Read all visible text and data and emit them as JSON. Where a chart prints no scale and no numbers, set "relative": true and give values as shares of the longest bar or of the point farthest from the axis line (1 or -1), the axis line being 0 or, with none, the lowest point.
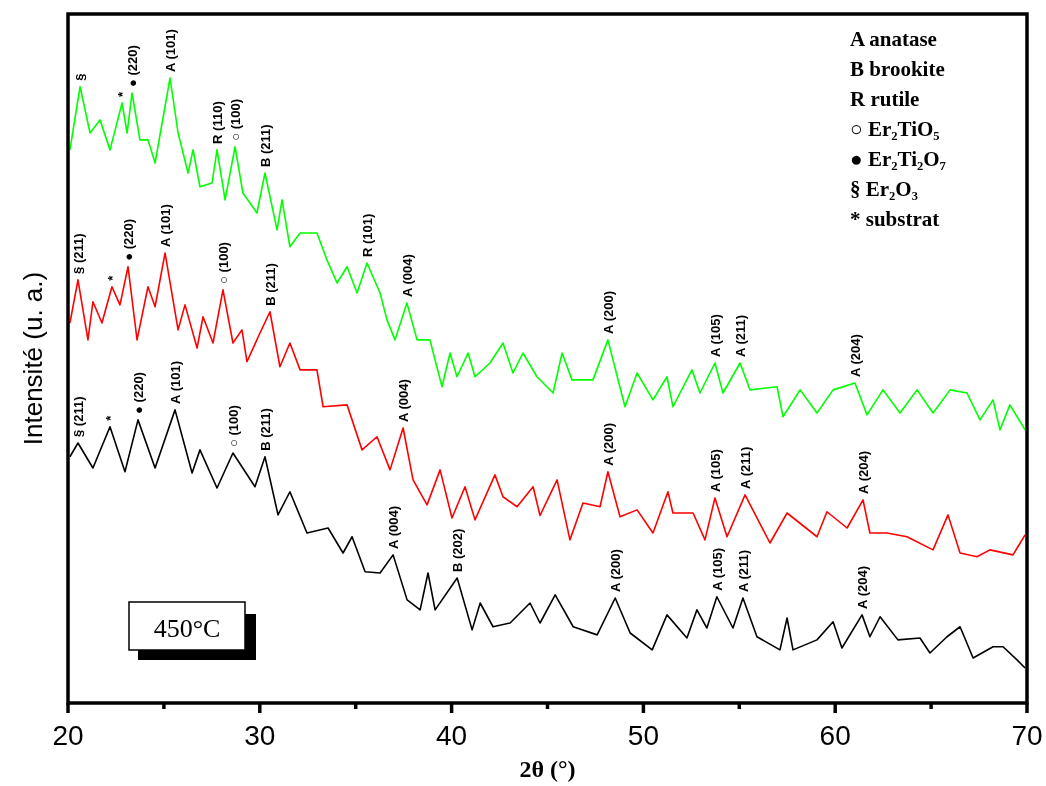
{
  "chart_data": {
    "type": "line",
    "title": "450°C",
    "xlabel": "2θ (°)",
    "ylabel": "Intensité (u. a.)",
    "relative": true,
    "marker": "none",
    "line_style": "solid",
    "grid": false,
    "tick_labels": "x",
    "xlim": [
      20,
      70
    ],
    "xticks": [
      20,
      {
        "value": 25,
        "label": null
      },
      30,
      {
        "value": 35,
        "label": null
      },
      40,
      {
        "value": 45,
        "label": null
      },
      50,
      {
        "value": 55,
        "label": null
      },
      60,
      {
        "value": 65,
        "label": null
      },
      70
    ],
    "series": [
      {
        "color": "#00ff00",
        "x": [
          20.1,
          20.63,
          21.15,
          21.67,
          22.19,
          22.82,
          23.08,
          23.34,
          23.75,
          24.17,
          24.54,
          25.32,
          25.74,
          26.26,
          26.52,
          26.88,
          27.51,
          27.77,
          28.19,
          28.71,
          29.12,
          29.85,
          30.27,
          30.9,
          31.16,
          31.57,
          32.1,
          32.98,
          33.5,
          34.03,
          34.55,
          35.07,
          35.59,
          36.27,
          36.63,
          37.05,
          37.67,
          38.2,
          38.87,
          39.5,
          39.92,
          40.28,
          40.86,
          41.22,
          42.0,
          42.68,
          43.2,
          43.72,
          44.45,
          45.29,
          45.76,
          46.28,
          47.37,
          48.15,
          49.04,
          49.67,
          50.5,
          51.23,
          51.54,
          52.53,
          52.95,
          53.73,
          54.15,
          55.04,
          55.56,
          56.97,
          57.28,
          58.17,
          59.05,
          59.89,
          61.03,
          61.66,
          62.49,
          63.38,
          64.27,
          65.1,
          65.99,
          66.87,
          67.55,
          68.23,
          68.59,
          69.11,
          69.9
        ],
        "values": [
          0.885,
          0.986,
          0.912,
          0.933,
          0.885,
          0.96,
          0.912,
          0.976,
          0.901,
          0.901,
          0.864,
          1,
          0.912,
          0.848,
          0.885,
          0.826,
          0.832,
          0.885,
          0.805,
          0.89,
          0.816,
          0.784,
          0.848,
          0.757,
          0.805,
          0.73,
          0.752,
          0.752,
          0.709,
          0.672,
          0.698,
          0.656,
          0.704,
          0.656,
          0.613,
          0.581,
          0.64,
          0.581,
          0.581,
          0.506,
          0.56,
          0.522,
          0.56,
          0.522,
          0.544,
          0.576,
          0.528,
          0.56,
          0.522,
          0.496,
          0.56,
          0.517,
          0.517,
          0.581,
          0.474,
          0.528,
          0.485,
          0.522,
          0.474,
          0.533,
          0.496,
          0.544,
          0.496,
          0.544,
          0.501,
          0.506,
          0.458,
          0.501,
          0.464,
          0.501,
          0.512,
          0.461,
          0.501,
          0.464,
          0.501,
          0.464,
          0.501,
          0.496,
          0.453,
          0.485,
          0.437,
          0.477,
          0.437
        ]
      },
      {
        "color": "#ff0000",
        "x": [
          20.1,
          20.52,
          21.04,
          21.3,
          21.77,
          22.29,
          22.71,
          23.13,
          23.6,
          24.17,
          24.54,
          25.06,
          25.74,
          26.1,
          26.73,
          27.04,
          27.56,
          28.08,
          28.6,
          29.07,
          29.33,
          30.01,
          30.53,
          31.05,
          31.57,
          32.1,
          32.98,
          33.3,
          34.55,
          35.33,
          36.11,
          36.79,
          37.47,
          37.99,
          38.72,
          39.4,
          40.02,
          40.7,
          41.22,
          42.26,
          42.68,
          43.41,
          44.25,
          44.61,
          45.5,
          46.17,
          46.85,
          47.74,
          48.15,
          48.78,
          49.67,
          50.5,
          51.28,
          51.54,
          52.59,
          53.21,
          53.73,
          54.36,
          55.3,
          56.6,
          57.49,
          59.05,
          59.57,
          60.62,
          61.45,
          61.81,
          62.7,
          63.74,
          65.1,
          65.88,
          66.51,
          67.39,
          68.07,
          69.27,
          69.9
        ],
        "values": [
          0.608,
          0.677,
          0.581,
          0.642,
          0.608,
          0.666,
          0.637,
          0.698,
          0.581,
          0.666,
          0.634,
          0.72,
          0.597,
          0.637,
          0.568,
          0.618,
          0.576,
          0.661,
          0.576,
          0.597,
          0.546,
          0.592,
          0.626,
          0.538,
          0.576,
          0.533,
          0.533,
          0.474,
          0.477,
          0.405,
          0.426,
          0.373,
          0.44,
          0.357,
          0.317,
          0.373,
          0.296,
          0.346,
          0.293,
          0.365,
          0.33,
          0.314,
          0.346,
          0.3,
          0.357,
          0.261,
          0.32,
          0.314,
          0.37,
          0.298,
          0.309,
          0.272,
          0.338,
          0.304,
          0.304,
          0.261,
          0.328,
          0.266,
          0.333,
          0.256,
          0.304,
          0.266,
          0.306,
          0.28,
          0.325,
          0.272,
          0.272,
          0.266,
          0.245,
          0.301,
          0.24,
          0.234,
          0.245,
          0.237,
          0.269
        ]
      },
      {
        "color": "#000000",
        "x": [
          20.1,
          20.52,
          21.3,
          22.19,
          22.97,
          23.65,
          24.54,
          25.58,
          26.47,
          26.88,
          27.77,
          28.6,
          29.75,
          30.27,
          30.95,
          31.57,
          32.46,
          33.56,
          34.34,
          34.81,
          35.49,
          36.27,
          36.95,
          37.68,
          38.36,
          38.77,
          39.14,
          40.29,
          41.07,
          41.49,
          42.16,
          43.05,
          44.09,
          44.61,
          45.4,
          46.34,
          47.59,
          48.53,
          49.31,
          50.46,
          51.23,
          52.27,
          52.79,
          53.31,
          53.83,
          54.67,
          55.19,
          55.92,
          57.12,
          57.49,
          57.8,
          59.05,
          59.89,
          60.35,
          61.4,
          61.81,
          62.34,
          63.27,
          64.42,
          64.94,
          65.83,
          66.51,
          67.19,
          68.23,
          68.75,
          69.48,
          69.9
        ],
        "values": [
          0.394,
          0.416,
          0.376,
          0.442,
          0.37,
          0.453,
          0.376,
          0.469,
          0.368,
          0.405,
          0.344,
          0.4,
          0.346,
          0.394,
          0.301,
          0.338,
          0.272,
          0.28,
          0.24,
          0.266,
          0.21,
          0.208,
          0.237,
          0.165,
          0.149,
          0.208,
          0.149,
          0.2,
          0.117,
          0.16,
          0.122,
          0.128,
          0.16,
          0.128,
          0.173,
          0.122,
          0.109,
          0.168,
          0.112,
          0.085,
          0.141,
          0.104,
          0.149,
          0.12,
          0.17,
          0.12,
          0.168,
          0.106,
          0.085,
          0.136,
          0.085,
          0.101,
          0.13,
          0.088,
          0.141,
          0.106,
          0.138,
          0.101,
          0.104,
          0.08,
          0.106,
          0.122,
          0.072,
          0.09,
          0.09,
          0.069,
          0.056
        ]
      }
    ],
    "annotations": [
      "A anatase",
      "B brookite",
      "R rutile",
      "○ Er₂TiO₅",
      "● Er₂Ti₂O₇",
      "§ Er₂O₃",
      "* substrat",
      {
        "text": "§",
        "x": 20.63,
        "y": 0.986
      },
      {
        "text": "*",
        "x": 22.82,
        "y": 0.96
      },
      {
        "text": "● (220)",
        "x": 23.34,
        "y": 0.976
      },
      {
        "text": "A (101)",
        "x": 25.32,
        "y": 1
      },
      {
        "text": "R (110)",
        "x": 27.77,
        "y": 0.885
      },
      {
        "text": "○ (100)",
        "x": 28.71,
        "y": 0.89
      },
      {
        "text": "B (211)",
        "x": 30.27,
        "y": 0.848
      },
      {
        "text": "R (101)",
        "x": 35.59,
        "y": 0.704
      },
      {
        "text": "A (004)",
        "x": 37.67,
        "y": 0.64
      },
      {
        "text": "A (200)",
        "x": 48.15,
        "y": 0.581
      },
      {
        "text": "A (105)",
        "x": 53.73,
        "y": 0.544
      },
      {
        "text": "A (211)",
        "x": 55.04,
        "y": 0.544
      },
      {
        "text": "A (204)",
        "x": 61.03,
        "y": 0.512
      },
      {
        "text": "§ (211)",
        "x": 20.52,
        "y": 0.677
      },
      {
        "text": "*",
        "x": 22.29,
        "y": 0.666
      },
      {
        "text": "● (220)",
        "x": 23.13,
        "y": 0.698
      },
      {
        "text": "A (101)",
        "x": 25.06,
        "y": 0.72
      },
      {
        "text": "○ (100)",
        "x": 28.08,
        "y": 0.661
      },
      {
        "text": "B (211)",
        "x": 30.53,
        "y": 0.626
      },
      {
        "text": "A (004)",
        "x": 37.47,
        "y": 0.44
      },
      {
        "text": "A (200)",
        "x": 48.15,
        "y": 0.37
      },
      {
        "text": "A (105)",
        "x": 53.73,
        "y": 0.328
      },
      {
        "text": "A (211)",
        "x": 55.3,
        "y": 0.333
      },
      {
        "text": "A (204)",
        "x": 61.45,
        "y": 0.325
      },
      {
        "text": "§ (211)",
        "x": 20.52,
        "y": 0.416
      },
      {
        "text": "*",
        "x": 22.19,
        "y": 0.442
      },
      {
        "text": "● (220)",
        "x": 23.65,
        "y": 0.453
      },
      {
        "text": "A (101)",
        "x": 25.58,
        "y": 0.469
      },
      {
        "text": "○ (100)",
        "x": 28.6,
        "y": 0.4
      },
      {
        "text": "B (211)",
        "x": 30.27,
        "y": 0.394
      },
      {
        "text": "A (004)",
        "x": 36.95,
        "y": 0.237
      },
      {
        "text": "B (202)",
        "x": 40.29,
        "y": 0.2
      },
      {
        "text": "A (200)",
        "x": 48.53,
        "y": 0.168
      },
      {
        "text": "A (105)",
        "x": 53.83,
        "y": 0.17
      },
      {
        "text": "A (211)",
        "x": 55.19,
        "y": 0.168
      },
      {
        "text": "A (204)",
        "x": 61.4,
        "y": 0.141
      }
    ]
  }
}
